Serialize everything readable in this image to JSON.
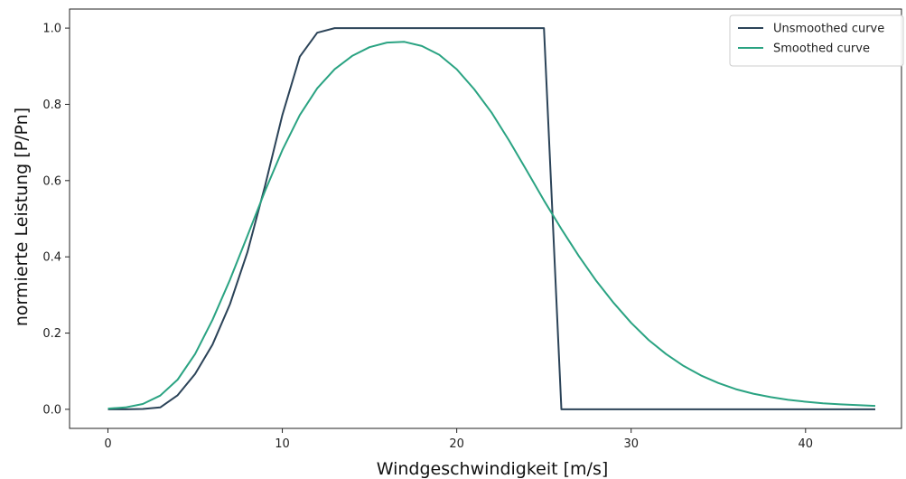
{
  "chart_data": {
    "type": "line",
    "xlabel": "Windgeschwindigkeit [m/s]",
    "ylabel": "normierte Leistung [P/Pn]",
    "xlim": [
      -2.2,
      45.5
    ],
    "ylim": [
      -0.05,
      1.05
    ],
    "x_ticks": [
      0,
      10,
      20,
      30,
      40
    ],
    "x_tick_labels": [
      "0",
      "10",
      "20",
      "30",
      "40"
    ],
    "y_ticks": [
      0.0,
      0.2,
      0.4,
      0.6,
      0.8,
      1.0
    ],
    "y_tick_labels": [
      "0.0",
      "0.2",
      "0.4",
      "0.6",
      "0.8",
      "1.0"
    ],
    "grid": false,
    "legend_position": "top-right",
    "x": [
      0,
      1,
      2,
      3,
      4,
      5,
      6,
      7,
      8,
      9,
      10,
      11,
      12,
      13,
      14,
      15,
      16,
      17,
      18,
      19,
      20,
      21,
      22,
      23,
      24,
      25,
      26,
      27,
      28,
      29,
      30,
      31,
      32,
      33,
      34,
      35,
      36,
      37,
      38,
      39,
      40,
      41,
      42,
      43,
      44
    ],
    "series": [
      {
        "name": "Unsmoothed curve",
        "color": "#2b4358",
        "values": [
          0.0,
          0.0,
          0.001,
          0.005,
          0.037,
          0.093,
          0.17,
          0.276,
          0.412,
          0.585,
          0.772,
          0.925,
          0.988,
          1.0,
          1.0,
          1.0,
          1.0,
          1.0,
          1.0,
          1.0,
          1.0,
          1.0,
          1.0,
          1.0,
          1.0,
          1.0,
          0.0,
          0.0,
          0.0,
          0.0,
          0.0,
          0.0,
          0.0,
          0.0,
          0.0,
          0.0,
          0.0,
          0.0,
          0.0,
          0.0,
          0.0,
          0.0,
          0.0,
          0.0,
          0.0
        ]
      },
      {
        "name": "Smoothed curve",
        "color": "#2aa382",
        "values": [
          0.002,
          0.005,
          0.014,
          0.036,
          0.078,
          0.145,
          0.235,
          0.34,
          0.455,
          0.572,
          0.68,
          0.772,
          0.842,
          0.892,
          0.927,
          0.95,
          0.962,
          0.964,
          0.953,
          0.93,
          0.892,
          0.84,
          0.778,
          0.705,
          0.627,
          0.548,
          0.473,
          0.402,
          0.337,
          0.279,
          0.227,
          0.182,
          0.145,
          0.114,
          0.089,
          0.069,
          0.053,
          0.041,
          0.032,
          0.025,
          0.02,
          0.016,
          0.013,
          0.011,
          0.009
        ]
      }
    ]
  }
}
